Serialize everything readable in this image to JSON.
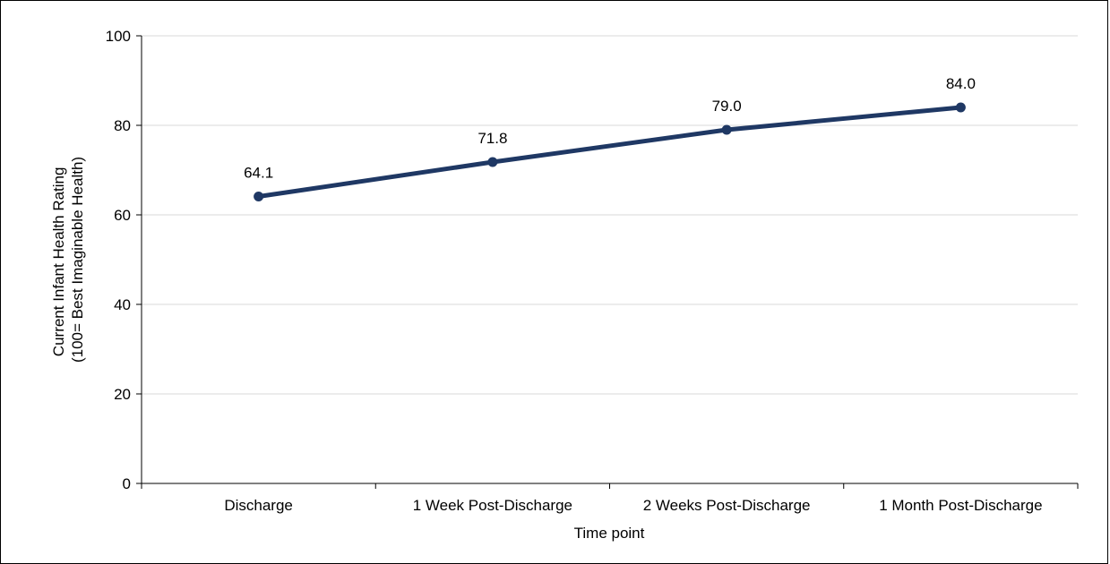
{
  "chart_data": {
    "type": "line",
    "categories": [
      "Discharge",
      "1 Week Post-Discharge",
      "2 Weeks Post-Discharge",
      "1 Month Post-Discharge"
    ],
    "series": [
      {
        "values": [
          64.1,
          71.8,
          79.0,
          84.0
        ],
        "labels": [
          "64.1",
          "71.8",
          "79.0",
          "84.0"
        ],
        "color": "#1f3864"
      }
    ],
    "xlabel": "Time point",
    "ylabel_line1": "Current Infant Health Rating",
    "ylabel_line2": "(100= Best Imaginable Health)",
    "ylim": [
      0,
      100
    ],
    "yticks": [
      "0",
      "20",
      "40",
      "60",
      "80",
      "100"
    ],
    "grid": true,
    "gridColor": "#d9d9d9",
    "axisColor": "#000000"
  }
}
